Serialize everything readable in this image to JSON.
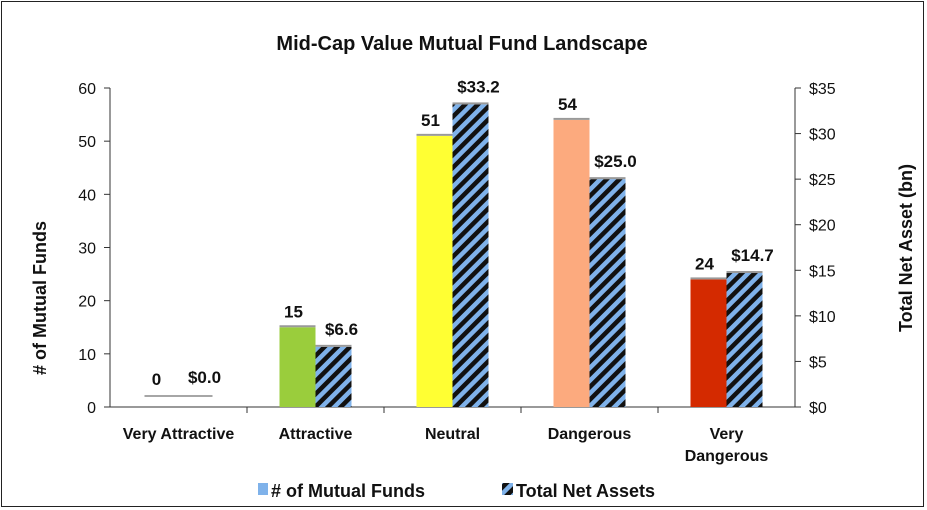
{
  "chart_data": {
    "type": "bar",
    "title": "Mid-Cap Value Mutual Fund Landscape",
    "categories": [
      "Very Attractive",
      "Attractive",
      "Neutral",
      "Dangerous",
      "Very Dangerous"
    ],
    "series": [
      {
        "name": "# of Mutual Funds",
        "axis": "left",
        "values": [
          0,
          15,
          51,
          54,
          24
        ],
        "labels": [
          "0",
          "15",
          "51",
          "54",
          "24"
        ],
        "colors": [
          "#a6a6a6",
          "#9acd3c",
          "#ffff33",
          "#fcaa7e",
          "#d42a00"
        ]
      },
      {
        "name": "Total Net Assets",
        "axis": "right",
        "values": [
          0.0,
          6.6,
          33.2,
          25.0,
          14.7
        ],
        "labels": [
          "$0.0",
          "$6.6",
          "$33.2",
          "$25.0",
          "$14.7"
        ],
        "pattern": "diagonal-stripes",
        "colors": [
          "#7fb2ea",
          "#111111"
        ]
      }
    ],
    "ylabel": "# of Mutual Funds",
    "ylim": [
      0,
      60
    ],
    "yticks": [
      "0",
      "10",
      "20",
      "30",
      "40",
      "50",
      "60"
    ],
    "y2label": "Total Net Asset (bn)",
    "y2lim": [
      0,
      35
    ],
    "y2ticks": [
      "$0",
      "$5",
      "$10",
      "$15",
      "$20",
      "$25",
      "$30",
      "$35"
    ],
    "legend": "bottom",
    "grid": false
  }
}
